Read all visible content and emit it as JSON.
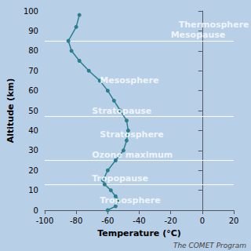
{
  "chart_data": {
    "type": "line",
    "xlabel": "Temperature (°C)",
    "ylabel": "Altitude (km)",
    "x": [
      -60,
      -55,
      -53,
      -55,
      -58,
      -62,
      -63,
      -60,
      -55,
      -50,
      -48,
      -47,
      -48,
      -52,
      -56,
      -60,
      -65,
      -72,
      -78,
      -83,
      -85,
      -80,
      -78
    ],
    "values": [
      0,
      2,
      5,
      7,
      10,
      13,
      15,
      20,
      25,
      30,
      35,
      40,
      45,
      50,
      55,
      60,
      65,
      70,
      75,
      80,
      85,
      92,
      98
    ],
    "color": "#2a7f8f",
    "marker": "circle",
    "xlim": [
      -100,
      20
    ],
    "ylim": [
      0,
      100
    ],
    "xticks": [
      -100,
      -80,
      -60,
      -40,
      -20,
      0,
      20
    ],
    "yticks": [
      0,
      10,
      20,
      30,
      40,
      50,
      60,
      70,
      80,
      90,
      100
    ],
    "grid": false,
    "background": "#b8cfe8",
    "hlines": [
      {
        "y": 85,
        "label": "Mesopause",
        "label_x": -20,
        "color": "white"
      },
      {
        "y": 47,
        "label": "Stratopause",
        "label_x": -70,
        "color": "white"
      },
      {
        "y": 25,
        "label": "Ozone maximum",
        "label_x": -70,
        "color": "white"
      },
      {
        "y": 13,
        "label": "Tropopause",
        "label_x": -70,
        "color": "white"
      }
    ],
    "annotations": [
      {
        "text": "Thermosphere",
        "x": -15,
        "y": 93,
        "color": "white"
      },
      {
        "text": "Mesosphere",
        "x": -65,
        "y": 65,
        "color": "white"
      },
      {
        "text": "Stratosphere",
        "x": -65,
        "y": 38,
        "color": "white"
      },
      {
        "text": "Troposphere",
        "x": -65,
        "y": 5,
        "color": "white"
      }
    ],
    "credit": "The COMET Program",
    "credit_color": "#444444"
  }
}
